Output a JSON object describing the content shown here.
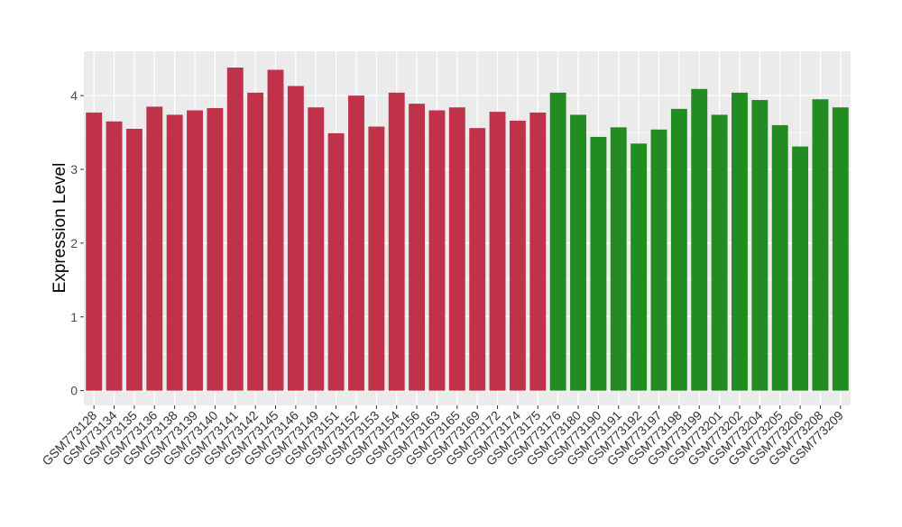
{
  "chart_data": {
    "type": "bar",
    "title": "",
    "xlabel": "",
    "ylabel": "Expression Level",
    "ylim": [
      -0.2,
      4.6
    ],
    "yticks": [
      0,
      1,
      2,
      3,
      4
    ],
    "grid": true,
    "colors": {
      "group1": "#C0314A",
      "group2": "#228B22",
      "panel": "#EBEBEB",
      "gridline": "#FFFFFF"
    },
    "categories": [
      "GSM773128",
      "GSM773134",
      "GSM773135",
      "GSM773136",
      "GSM773138",
      "GSM773139",
      "GSM773140",
      "GSM773141",
      "GSM773142",
      "GSM773145",
      "GSM773146",
      "GSM773149",
      "GSM773151",
      "GSM773152",
      "GSM773153",
      "GSM773154",
      "GSM773156",
      "GSM773163",
      "GSM773165",
      "GSM773169",
      "GSM773172",
      "GSM773174",
      "GSM773175",
      "GSM773176",
      "GSM773180",
      "GSM773190",
      "GSM773191",
      "GSM773192",
      "GSM773197",
      "GSM773198",
      "GSM773199",
      "GSM773201",
      "GSM773202",
      "GSM773204",
      "GSM773205",
      "GSM773206",
      "GSM773208",
      "GSM773209"
    ],
    "values": [
      3.77,
      3.65,
      3.55,
      3.85,
      3.74,
      3.8,
      3.83,
      4.38,
      4.04,
      4.35,
      4.13,
      3.84,
      3.49,
      4.0,
      3.58,
      4.04,
      3.89,
      3.8,
      3.84,
      3.56,
      3.78,
      3.66,
      3.77,
      4.04,
      3.74,
      3.44,
      3.57,
      3.35,
      3.54,
      3.82,
      4.09,
      3.74,
      4.04,
      3.94,
      3.6,
      3.31,
      3.95,
      3.84
    ],
    "groups": [
      "group1",
      "group1",
      "group1",
      "group1",
      "group1",
      "group1",
      "group1",
      "group1",
      "group1",
      "group1",
      "group1",
      "group1",
      "group1",
      "group1",
      "group1",
      "group1",
      "group1",
      "group1",
      "group1",
      "group1",
      "group1",
      "group1",
      "group1",
      "group2",
      "group2",
      "group2",
      "group2",
      "group2",
      "group2",
      "group2",
      "group2",
      "group2",
      "group2",
      "group2",
      "group2",
      "group2",
      "group2",
      "group2"
    ]
  }
}
